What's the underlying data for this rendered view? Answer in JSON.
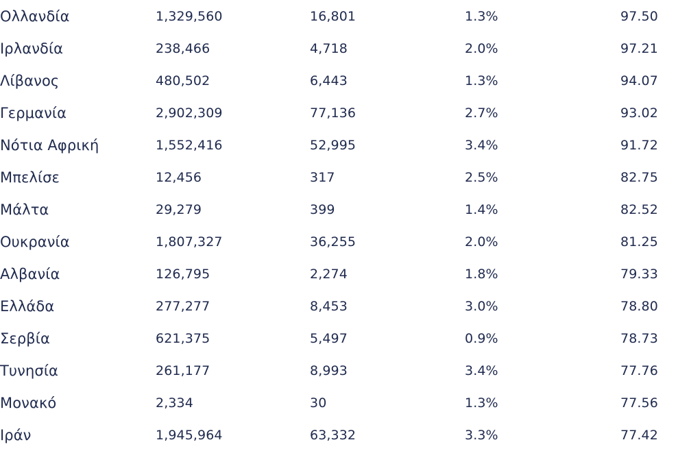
{
  "table": {
    "rows": [
      [
        "Ολλανδία",
        "1,329,560",
        "16,801",
        "1.3%",
        "97.50"
      ],
      [
        "Ιρλανδία",
        "238,466",
        "4,718",
        "2.0%",
        "97.21"
      ],
      [
        "Λίβανος",
        "480,502",
        "6,443",
        "1.3%",
        "94.07"
      ],
      [
        "Γερμανία",
        "2,902,309",
        "77,136",
        "2.7%",
        "93.02"
      ],
      [
        "Νότια Αφρική",
        "1,552,416",
        "52,995",
        "3.4%",
        "91.72"
      ],
      [
        "Μπελίσε",
        "12,456",
        "317",
        "2.5%",
        "82.75"
      ],
      [
        "Μάλτα",
        "29,279",
        "399",
        "1.4%",
        "82.52"
      ],
      [
        "Ουκρανία",
        "1,807,327",
        "36,255",
        "2.0%",
        "81.25"
      ],
      [
        "Αλβανία",
        "126,795",
        "2,274",
        "1.8%",
        "79.33"
      ],
      [
        "Ελλάδα",
        "277,277",
        "8,453",
        "3.0%",
        "78.80"
      ],
      [
        "Σερβία",
        "621,375",
        "5,497",
        "0.9%",
        "78.73"
      ],
      [
        "Τυνησία",
        "261,177",
        "8,993",
        "3.4%",
        "77.76"
      ],
      [
        "Μονακό",
        "2,334",
        "30",
        "1.3%",
        "77.56"
      ],
      [
        "Ιράν",
        "1,945,964",
        "63,332",
        "3.3%",
        "77.42"
      ]
    ]
  }
}
